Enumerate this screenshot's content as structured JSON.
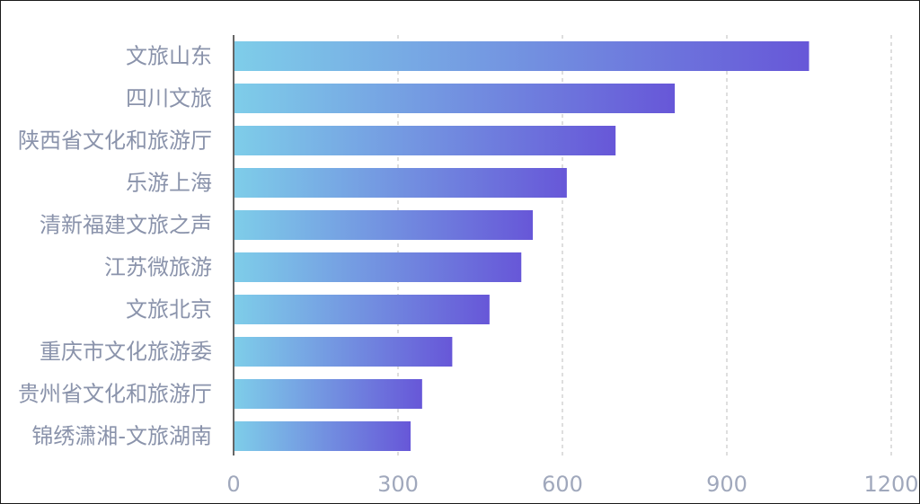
{
  "chart_data": {
    "type": "bar",
    "orientation": "horizontal",
    "categories": [
      "文旅山东",
      "四川文旅",
      "陕西省文化和旅游厅",
      "乐游上海",
      "清新福建文旅之声",
      "江苏微旅游",
      "文旅北京",
      "重庆市文化旅游委",
      "贵州省文化和旅游厅",
      "锦绣潇湘-文旅湖南"
    ],
    "values": [
      1050,
      805,
      697,
      608,
      546,
      525,
      467,
      399,
      344,
      323
    ],
    "xlim": [
      0,
      1200
    ],
    "xticks": [
      "0",
      "300",
      "600",
      "900",
      "1200"
    ],
    "xtick_values": [
      0,
      300,
      600,
      900,
      1200
    ],
    "grid": "vertical dashed",
    "bar_gradient": {
      "start": "#7ecde9",
      "end": "#6757d8"
    },
    "title": "",
    "xlabel": "",
    "ylabel": ""
  }
}
